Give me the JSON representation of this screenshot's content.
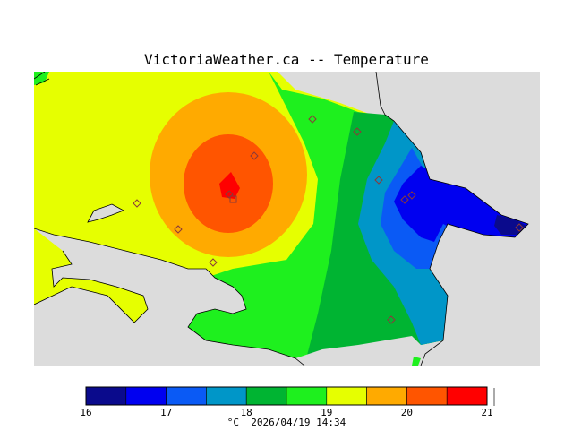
{
  "title": "VictoriaWeather.ca -- Temperature",
  "legend": {
    "ticks": [
      "16",
      "17",
      "18",
      "19",
      "20",
      "21"
    ],
    "colors": [
      "#0a0a8c",
      "#0000f0",
      "#0a5af5",
      "#0096c8",
      "#00b432",
      "#1ef01e",
      "#e6ff00",
      "#ffaa00",
      "#ff5500",
      "#ff0000"
    ]
  },
  "footer": {
    "unit": "°C",
    "timestamp": "2026/04/19 14:34"
  },
  "colors": {
    "land_background": "#dcdcdc",
    "coastline": "#000000"
  },
  "stations_count_note": "diamond markers"
}
